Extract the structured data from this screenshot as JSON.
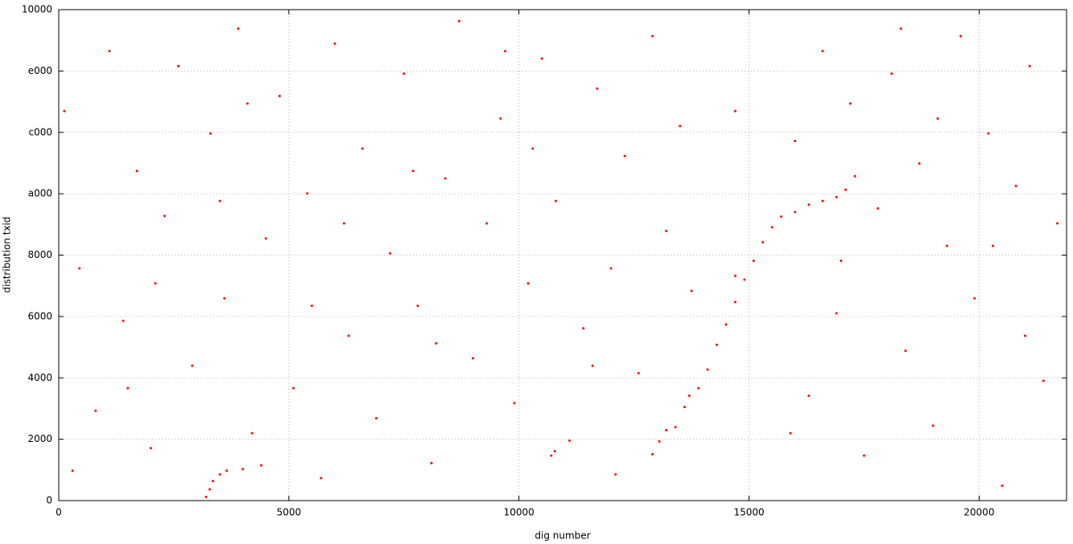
{
  "chart_data": {
    "type": "scatter",
    "x_label": "dig number",
    "y_label": "distribution txid",
    "xlim": [
      0,
      21900
    ],
    "xticks": [
      0,
      5000,
      10000,
      15000,
      20000
    ],
    "ylim": [
      0,
      65536
    ],
    "yticks": [
      0,
      {
        "value": 8192,
        "label": "2000"
      },
      {
        "value": 16384,
        "label": "4000"
      },
      {
        "value": 24576,
        "label": "6000"
      },
      {
        "value": 32768,
        "label": "8000"
      },
      {
        "value": 40960,
        "label": "a000"
      },
      {
        "value": 49152,
        "label": "c000"
      },
      {
        "value": 57344,
        "label": "e000"
      },
      {
        "value": 65536,
        "label": "10000"
      }
    ],
    "grid": true,
    "series": [
      {
        "color": "#ff0000",
        "x": [
          120,
          450,
          800,
          1100,
          1400,
          1700,
          2000,
          2300,
          2600,
          2900,
          3300,
          3600,
          3900,
          4200,
          4500,
          4800,
          5100,
          5400,
          5700,
          6000,
          6300,
          6600,
          6900,
          7200,
          7500,
          7800,
          8100,
          8400,
          8700,
          9000,
          9300,
          9600,
          9900,
          10200,
          10500,
          10800,
          11100,
          11400,
          11700,
          12000,
          12300,
          12600,
          12900,
          13200,
          13500,
          13750,
          14700,
          14700,
          16000,
          16300,
          16600,
          16900,
          17200,
          17500,
          17800,
          18100,
          18400,
          18700,
          19000,
          19300,
          19600,
          19900,
          20200,
          20500,
          20800,
          21100,
          21400,
          21700,
          300,
          2100,
          4100,
          6200,
          8200,
          10300,
          12100,
          17000,
          19100,
          21000,
          5500,
          7700,
          9700,
          11600,
          15900,
          18300,
          20300,
          1500,
          3500,
          13700,
          3200,
          3280,
          3350,
          3500,
          3650,
          4000,
          4400,
          10700,
          10780,
          12900,
          13050,
          13200,
          13400,
          13600,
          13900,
          14100,
          14300,
          14500,
          14700,
          14900,
          15100,
          15300,
          15500,
          15700,
          16000,
          16300,
          16600,
          16900,
          17100,
          17300
        ],
        "values": [
          52000,
          31000,
          12000,
          60000,
          24000,
          44000,
          7000,
          38000,
          58000,
          18000,
          49000,
          27000,
          63000,
          9000,
          35000,
          54000,
          15000,
          41000,
          3000,
          61000,
          22000,
          47000,
          11000,
          33000,
          57000,
          26000,
          5000,
          43000,
          64000,
          19000,
          37000,
          51000,
          13000,
          29000,
          59000,
          40000,
          8000,
          23000,
          55000,
          31000,
          46000,
          17000,
          62000,
          36000,
          50000,
          28000,
          52000,
          30000,
          48000,
          14000,
          60000,
          25000,
          53000,
          6000,
          39000,
          57000,
          20000,
          45000,
          10000,
          34000,
          62000,
          27000,
          49000,
          2000,
          42000,
          58000,
          16000,
          37000,
          4000,
          29000,
          53000,
          37000,
          21000,
          47000,
          3500,
          32000,
          51000,
          22000,
          26000,
          44000,
          60000,
          18000,
          9000,
          63000,
          34000,
          15000,
          40000,
          14000,
          500,
          1500,
          2600,
          3500,
          4000,
          4200,
          4700,
          6000,
          6600,
          6200,
          7900,
          9400,
          9800,
          12500,
          15000,
          17500,
          20800,
          23500,
          26500,
          29500,
          32000,
          34500,
          36500,
          37900,
          38500,
          39500,
          40000,
          40500,
          41500,
          43300
        ]
      }
    ]
  }
}
